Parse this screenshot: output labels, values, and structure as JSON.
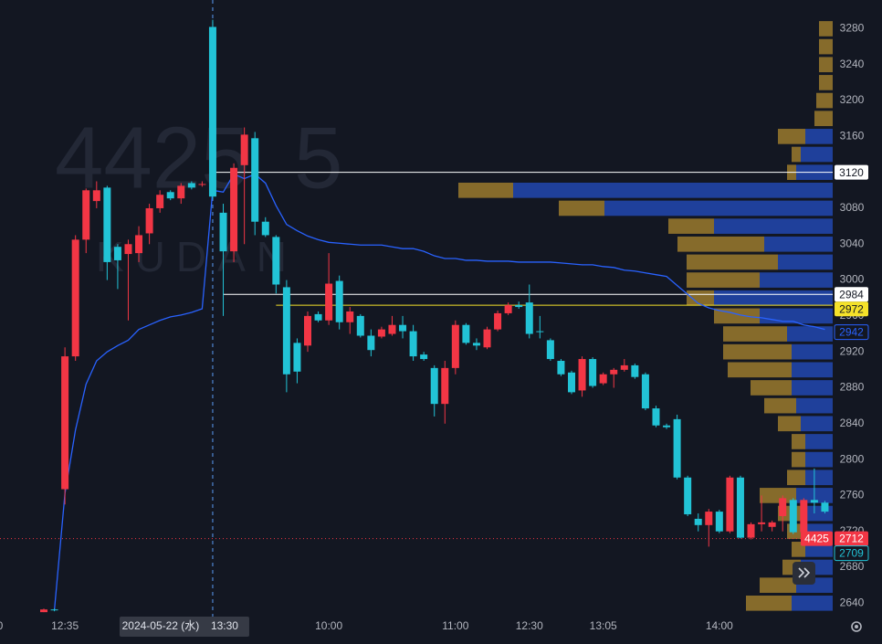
{
  "chart_data": {
    "type": "candlestick",
    "watermark": {
      "symbol": "4425",
      "interval": "5",
      "name": "KUDAN"
    },
    "left_edge_label": "0",
    "categories": [
      null,
      null,
      "12:35",
      null,
      null,
      null,
      null,
      null,
      null,
      null,
      null,
      null,
      null,
      null,
      null,
      null,
      "13:30",
      null,
      null,
      null,
      null,
      null,
      null,
      null,
      null,
      null,
      null,
      "10:00",
      null,
      null,
      null,
      null,
      null,
      null,
      null,
      null,
      null,
      null,
      null,
      "11:00",
      null,
      null,
      null,
      null,
      null,
      null,
      "12:30",
      null,
      null,
      null,
      null,
      null,
      null,
      "13:05",
      null,
      null,
      null,
      null,
      null,
      null,
      null,
      null,
      null,
      null,
      "14:00",
      null,
      null,
      null,
      null,
      null,
      null,
      null,
      null,
      null,
      null
    ],
    "crosshair": {
      "index": 16,
      "date": "2024-05-22 (水)",
      "color": "#5b9cf6"
    },
    "open": [
      2630,
      2633,
      2767,
      2915,
      3045,
      3088,
      3103,
      3037,
      3029,
      3030,
      3052,
      3080,
      3098,
      3091,
      3108,
      3106,
      3282,
      3075,
      3032,
      3128,
      3158,
      3065,
      3048,
      2992,
      2930,
      2927,
      2962,
      2955,
      2999,
      2953,
      2960,
      2938,
      2937,
      2940,
      2950,
      2943,
      2917,
      2902,
      2862,
      2902,
      2950,
      2930,
      2925,
      2945,
      2963,
      2972,
      2975,
      2943,
      2933,
      2910,
      2897,
      2877,
      2912,
      2885,
      2895,
      2900,
      2905,
      2895,
      2857,
      2838,
      2845,
      2780,
      2734,
      2727,
      2742,
      2720,
      2780,
      2713,
      2728,
      2725,
      2737,
      2755,
      2719,
      2755,
      2752
    ],
    "high": [
      2634,
      2634,
      2925,
      3050,
      3102,
      3110,
      3105,
      3040,
      3045,
      3060,
      3085,
      3100,
      3100,
      3108,
      3110,
      3110,
      3290,
      3085,
      3130,
      3170,
      3165,
      3070,
      3050,
      3000,
      2935,
      2965,
      2965,
      3030,
      3005,
      2970,
      2962,
      2945,
      2948,
      2960,
      2960,
      2950,
      2920,
      2905,
      2910,
      2955,
      2952,
      2935,
      2948,
      2966,
      2975,
      2976,
      2995,
      2960,
      2935,
      2912,
      2899,
      2915,
      2914,
      2897,
      2902,
      2912,
      2907,
      2897,
      2860,
      2840,
      2850,
      2782,
      2740,
      2745,
      2744,
      2782,
      2782,
      2730,
      2760,
      2732,
      2760,
      2757,
      2757,
      2790,
      2754
    ],
    "low": [
      2630,
      2631,
      2750,
      2910,
      3030,
      3080,
      3000,
      2990,
      2955,
      3020,
      3040,
      3075,
      3089,
      3085,
      3101,
      3104,
      3090,
      2960,
      3020,
      3040,
      3050,
      3048,
      2985,
      2875,
      2885,
      2920,
      2953,
      2950,
      2945,
      2940,
      2936,
      2915,
      2935,
      2938,
      2935,
      2910,
      2910,
      2848,
      2840,
      2895,
      2928,
      2922,
      2923,
      2943,
      2961,
      2968,
      2935,
      2935,
      2910,
      2893,
      2873,
      2870,
      2880,
      2883,
      2880,
      2898,
      2890,
      2855,
      2836,
      2834,
      2778,
      2737,
      2720,
      2703,
      2718,
      2718,
      2712,
      2711,
      2720,
      2720,
      2720,
      2717,
      2717,
      2740,
      2740
    ],
    "close": [
      2633,
      2632,
      2915,
      3045,
      3100,
      3100,
      3020,
      3022,
      3040,
      3050,
      3080,
      3095,
      3091,
      3105,
      3103,
      3107,
      3093,
      3032,
      3125,
      3162,
      3065,
      3050,
      2995,
      2895,
      2898,
      2960,
      2955,
      2996,
      2953,
      2965,
      2938,
      2922,
      2945,
      2950,
      2943,
      2915,
      2912,
      2862,
      2902,
      2950,
      2930,
      2927,
      2945,
      2963,
      2972,
      2970,
      2940,
      2942,
      2912,
      2895,
      2875,
      2912,
      2882,
      2895,
      2900,
      2905,
      2892,
      2857,
      2838,
      2836,
      2780,
      2739,
      2727,
      2742,
      2720,
      2780,
      2713,
      2728,
      2730,
      2730,
      2757,
      2719,
      2755,
      2752,
      2742
    ],
    "up_color": "#f23645",
    "down_color": "#22c3d6",
    "vwap": {
      "color": "#2962ff",
      "values": [
        null,
        2632,
        2762,
        2833,
        2884,
        2910,
        2920,
        2927,
        2933,
        2945,
        2950,
        2955,
        2959,
        2961,
        2964,
        2968,
        3100,
        3098,
        3118,
        3113,
        3118,
        3108,
        3083,
        3062,
        3055,
        3049,
        3045,
        3042,
        3041,
        3040,
        3039,
        3039,
        3039,
        3037,
        3035,
        3035,
        3032,
        3027,
        3024,
        3024,
        3022,
        3022,
        3021,
        3021,
        3021,
        3020,
        3020,
        3020,
        3020,
        3019,
        3018,
        3017,
        3017,
        3015,
        3014,
        3011,
        3010,
        3008,
        3006,
        3004,
        2994,
        2984,
        2974,
        2969,
        2966,
        2964,
        2961,
        2959,
        2958,
        2956,
        2954,
        2954,
        2950,
        2948,
        2945
      ]
    },
    "volume_profile": {
      "levels": [
        3280,
        3260,
        3240,
        3220,
        3200,
        3180,
        3160,
        3140,
        3120,
        3100,
        3080,
        3060,
        3040,
        3020,
        3000,
        2980,
        2960,
        2940,
        2920,
        2900,
        2880,
        2860,
        2840,
        2820,
        2800,
        2780,
        2760,
        2740,
        2720,
        2700,
        2680,
        2660,
        2640
      ],
      "up": [
        0,
        0,
        0,
        0,
        0,
        0,
        30,
        35,
        40,
        350,
        250,
        130,
        75,
        60,
        80,
        130,
        80,
        50,
        45,
        45,
        45,
        40,
        35,
        30,
        30,
        30,
        40,
        35,
        35,
        30,
        35,
        40,
        45
      ],
      "down": [
        15,
        15,
        15,
        15,
        18,
        20,
        30,
        10,
        10,
        60,
        50,
        50,
        95,
        100,
        80,
        30,
        50,
        70,
        75,
        70,
        45,
        35,
        25,
        15,
        15,
        20,
        40,
        25,
        15,
        15,
        20,
        40,
        50
      ],
      "up_color": "#2962ff",
      "down_color": "#b8902f"
    },
    "ylim": [
      2622,
      3312
    ],
    "yticks": [
      3280,
      3240,
      3200,
      3160,
      3120,
      3080,
      3040,
      3000,
      2960,
      2920,
      2880,
      2840,
      2800,
      2760,
      2720,
      2680,
      2640
    ],
    "badges": [
      {
        "value": 3120,
        "bg": "#ffffff",
        "fg": "#131722",
        "line_from": 16,
        "line_style": "solid"
      },
      {
        "value": 2984,
        "bg": "#ffffff",
        "fg": "#131722",
        "line_from": 17,
        "line_style": "solid"
      },
      {
        "value": 2972,
        "bg": "#f5e22a",
        "fg": "#131722",
        "line_from": 22,
        "line_style": "solid"
      },
      {
        "value": 2942,
        "bg": "#131722",
        "fg": "#2962ff",
        "border": "#2962ff"
      },
      {
        "value": 2712,
        "bg": "#f23645",
        "fg": "#ffffff",
        "line_from": 0,
        "line_style": "dotted",
        "symbol_tag": true
      },
      {
        "value": 2709,
        "bg": "#131722",
        "fg": "#22c3d6",
        "border": "#22c3d6"
      }
    ]
  }
}
